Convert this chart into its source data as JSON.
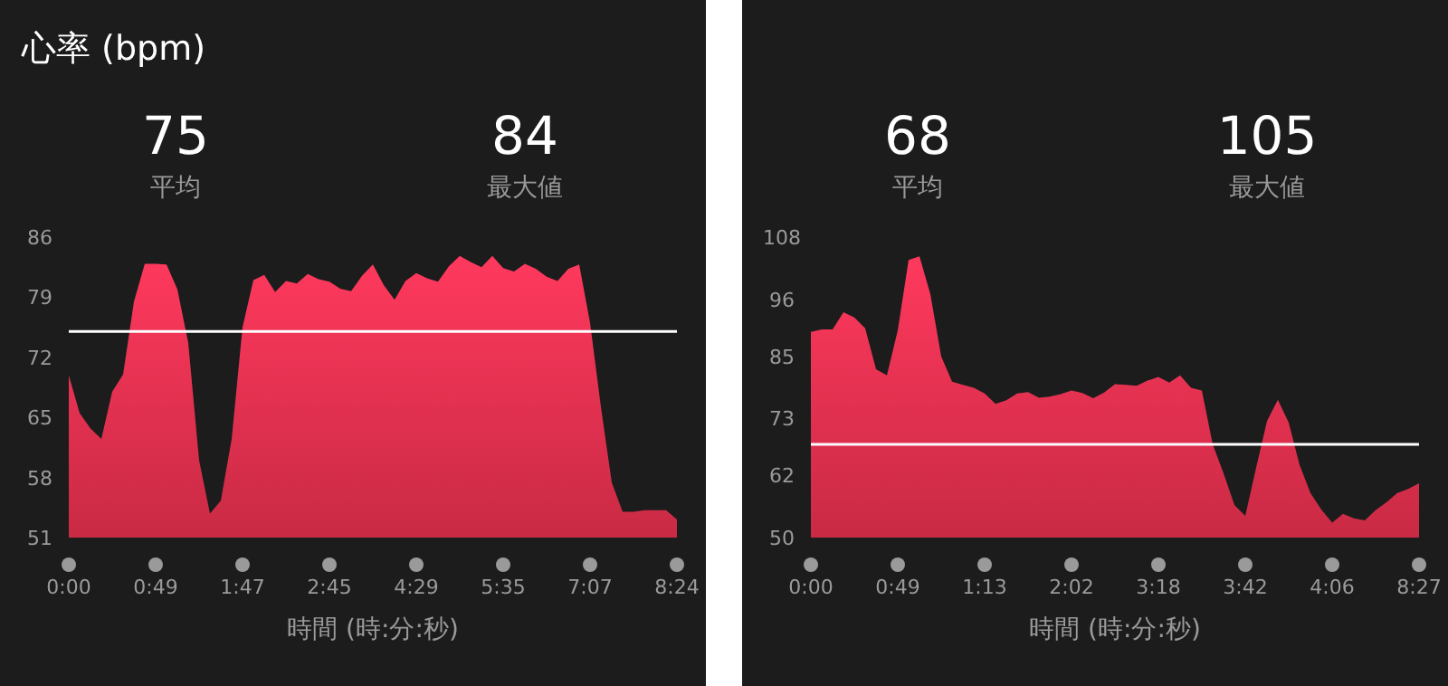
{
  "chart_data": [
    {
      "type": "area",
      "title": "心率 (bpm)",
      "xlabel": "時間 (時:分:秒)",
      "annotations": [
        "75",
        "平均",
        "84",
        "最大値"
      ],
      "categories": [
        "0:00",
        null,
        null,
        null,
        null,
        null,
        null,
        null,
        "0:49",
        null,
        null,
        null,
        null,
        null,
        null,
        null,
        "1:47",
        null,
        null,
        null,
        null,
        null,
        null,
        null,
        "2:45",
        null,
        null,
        null,
        null,
        null,
        null,
        null,
        "4:29",
        null,
        null,
        null,
        null,
        null,
        null,
        null,
        "5:35",
        null,
        null,
        null,
        null,
        null,
        null,
        null,
        "7:07",
        null,
        null,
        null,
        null,
        null,
        null,
        null,
        "8:24"
      ],
      "series": [
        {
          "color": "#e8304f",
          "values": [
            69.9,
            65.5,
            63.7,
            62.5,
            68.0,
            70.0,
            78.5,
            82.9,
            82.9,
            82.8,
            79.9,
            73.7,
            60.0,
            53.8,
            55.3,
            62.5,
            75.5,
            81.0,
            81.6,
            79.6,
            80.9,
            80.6,
            81.7,
            81.1,
            80.8,
            80.0,
            79.7,
            81.5,
            82.8,
            80.4,
            78.7,
            80.9,
            81.8,
            81.2,
            80.8,
            82.6,
            83.8,
            83.1,
            82.5,
            83.8,
            82.4,
            82.0,
            82.9,
            82.3,
            81.4,
            80.9,
            82.3,
            82.8,
            76.0,
            66.2,
            57.4,
            54.0,
            54.0,
            54.2,
            54.2,
            54.2,
            53.1
          ]
        }
      ],
      "ylim": [
        51,
        86
      ],
      "yticks": [
        51,
        58,
        65,
        72,
        79,
        86
      ],
      "ref_lines": [
        {
          "axis": "y",
          "value": 75,
          "color": "#ffffff"
        }
      ]
    },
    {
      "type": "area",
      "xlabel": "時間 (時:分:秒)",
      "annotations": [
        "68",
        "平均",
        "105",
        "最大値"
      ],
      "categories": [
        "0:00",
        null,
        null,
        null,
        null,
        null,
        null,
        null,
        "0:49",
        null,
        null,
        null,
        null,
        null,
        null,
        null,
        "1:13",
        null,
        null,
        null,
        null,
        null,
        null,
        null,
        "2:02",
        null,
        null,
        null,
        null,
        null,
        null,
        null,
        "3:18",
        null,
        null,
        null,
        null,
        null,
        null,
        null,
        "3:42",
        null,
        null,
        null,
        null,
        null,
        null,
        null,
        "4:06",
        null,
        null,
        null,
        null,
        null,
        null,
        null,
        "8:27"
      ],
      "series": [
        {
          "color": "#e8304f",
          "values": [
            89.7,
            90.2,
            90.2,
            93.5,
            92.5,
            90.4,
            82.5,
            81.3,
            90.0,
            103.6,
            104.3,
            97.0,
            85.0,
            80.1,
            79.5,
            78.9,
            77.8,
            75.8,
            76.5,
            77.8,
            78.1,
            77.0,
            77.2,
            77.7,
            78.4,
            77.9,
            76.9,
            78.0,
            79.6,
            79.5,
            79.3,
            80.3,
            81.0,
            79.9,
            81.3,
            78.9,
            78.4,
            68.0,
            62.4,
            56.3,
            54.2,
            63.5,
            72.5,
            76.6,
            72.2,
            64.0,
            58.6,
            55.4,
            52.9,
            54.6,
            53.7,
            53.3,
            55.3,
            56.8,
            58.6,
            59.4,
            60.5
          ]
        }
      ],
      "ylim": [
        50,
        108
      ],
      "yticks": [
        50,
        62,
        73,
        85,
        96,
        108
      ],
      "ref_lines": [
        {
          "axis": "y",
          "value": 68,
          "color": "#ffffff"
        }
      ]
    }
  ]
}
